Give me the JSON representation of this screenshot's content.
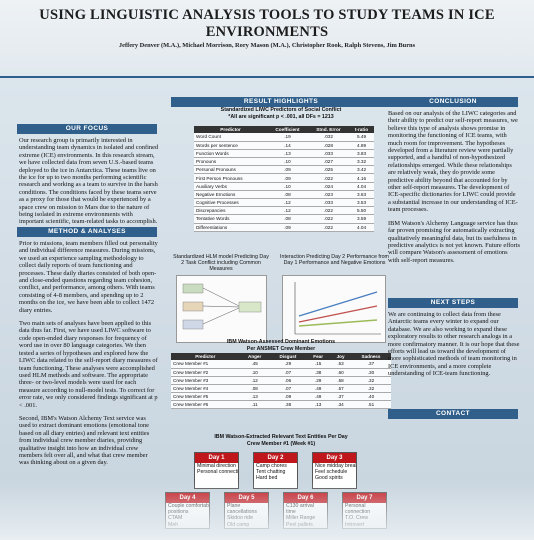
{
  "title": "USING LINGUISTIC ANALYSIS TOOLS TO STUDY TEAMS IN ICE ENVIRONMENTS",
  "authors": "Jeffery Denver (M.A.), Michael Morrison, Rory Mason (M.A.), Christopher Rook, Ralph Stevens, Jim Burns",
  "focus": {
    "header": "OUR FOCUS",
    "text": "Our research group is primarily interested in understanding team dynamics in isolated and confined extreme (ICE) environments. In this research stream, we have collected data from seven U.S.-based teams deployed to the ice in Antarctica. These teams live on the ice for up to two months performing scientific research and working as a team to survive in the harsh conditions. The conditions faced by these teams serve as a proxy for those that would be experienced by a space crew on mission to Mars due to the nature of being isolated in extreme environments with important scientific, team-related tasks to accomplish."
  },
  "methods": {
    "header": "METHOD & ANALYSES",
    "paragraphs": [
      "Prior to missions, team members filled out personality and individual difference measures. During missions, we used an experience sampling methodology to collect daily reports of team functioning and processes. These daily diaries consisted of both open- and close-ended questions regarding team cohesion, conflict, and performance, among others. With teams consisting of 4-8 members, and spending up to 2 months on the ice, we have been able to collect 1472 diary entries.",
      "Two main sets of analyses have been applied to this data thus far. First, we have used LIWC software to code open-ended diary responses for frequency of word use in over 80 language categories. We then tested a series of hypotheses and explored how the LIWC data related to the self-report diary measures of team functioning. These analyses were accomplished used HLM methods and software. The appropriate three- or two-level models were used for each measure according to null-model tests. To correct for error rate, we only considered findings significant at p < .001.",
      "Second, IBM's Watson Alchemy Text service was used to extract dominant emotions (emotional tone based on all diary entries) and relevant text entities from individual crew member diaries, providing qualitative insight into how an individual crew members felt over all, and what that crew member was thinking about on a given day."
    ]
  },
  "results": {
    "header": "RESULT HIGHLIGHTS",
    "table1": {
      "caption1": "Standardized LIWC Predictors of Social Conflict",
      "caption2": "*All are significant p < .001, all DFs = 1213",
      "columns": [
        "Predictor",
        "Coefficient",
        "Stnd. Error",
        "t-ratio"
      ],
      "rows": [
        [
          "Word Count",
          ".19",
          ".032",
          "5.49"
        ],
        [
          "Words per sentence",
          ".14",
          ".028",
          "4.89"
        ],
        [
          "Function Words",
          ".13",
          ".033",
          "3.83"
        ],
        [
          "Pronouns",
          ".10",
          ".027",
          "3.32"
        ],
        [
          "Personal Pronouns",
          ".09",
          ".025",
          "3.42"
        ],
        [
          "First Person Pronouns",
          ".09",
          ".022",
          "4.16"
        ],
        [
          "Auxiliary Verbs",
          ".10",
          ".024",
          "4.04"
        ],
        [
          "Negative Emotions",
          ".08",
          ".023",
          "3.63"
        ],
        [
          "Cognitive Processes",
          ".12",
          ".033",
          "3.53"
        ],
        [
          "Discrepancies",
          ".12",
          ".022",
          "5.50"
        ],
        [
          "Tentative Words",
          ".08",
          ".022",
          "3.59"
        ],
        [
          "Differentiations",
          ".09",
          ".022",
          "4.04"
        ]
      ]
    },
    "chart1": {
      "caption": "Standardized HLM model Predicting Day 2 Task Conflict including Common Measures"
    },
    "chart2": {
      "caption": "Interaction Predicting Day 2 Performance from Day 1 Performance and Negative Emotions"
    },
    "table2": {
      "caption1": "IBM Watson-Assessed Dominant Emotions",
      "caption2": "Per ANSMET Crew Member",
      "columns": [
        "Predictor",
        "Anger",
        "Disgust",
        "Fear",
        "Joy",
        "Sadness"
      ],
      "rows": [
        [
          "Crew Member #1",
          ".45",
          ".29",
          ".15",
          ".53",
          ".37"
        ],
        [
          "Crew Member #2",
          ".10",
          ".07",
          ".38",
          ".60",
          ".30"
        ],
        [
          "Crew Member #3",
          ".12",
          ".06",
          ".29",
          ".58",
          ".32"
        ],
        [
          "Crew Member #4",
          ".08",
          ".07",
          ".49",
          ".57",
          ".32"
        ],
        [
          "Crew Member #5",
          ".13",
          ".09",
          ".49",
          ".37",
          ".40"
        ],
        [
          "Crew Member #6",
          ".11",
          ".38",
          ".13",
          ".34",
          ".51"
        ]
      ]
    },
    "entities": {
      "caption1": "IBM Watson-Extracted Relevant Text Entities Per Day",
      "caption2": "Crew Member #1 (Week #1)",
      "days": [
        {
          "label": "Day 1",
          "items": [
            "Minimal direction",
            "Personal connection"
          ]
        },
        {
          "label": "Day 2",
          "items": [
            "Camp chores",
            "Tent chatting",
            "Hard bed"
          ]
        },
        {
          "label": "Day 3",
          "items": [
            "Nice midday break",
            "Feel schedule",
            "Good spirits"
          ]
        },
        {
          "label": "Day 4",
          "items": [
            "Couple comfortable",
            "positions",
            "CTAM",
            "Meh"
          ]
        },
        {
          "label": "Day 5",
          "items": [
            "Plane",
            "cancellations",
            "Skidoo ride",
            "Old camp"
          ]
        },
        {
          "label": "Day 6",
          "items": [
            "C130 arrival",
            "time",
            "Miller Range",
            "Peel pallets"
          ]
        },
        {
          "label": "Day 7",
          "items": [
            "Personal",
            "connection",
            "T.O. Crew",
            "Introvert"
          ]
        }
      ]
    }
  },
  "conclusion": {
    "header": "CONCLUSION",
    "paragraphs": [
      "Based on our analysis of the LIWC categories and their ability to predict our self-report measures, we believe this type of analysis shows promise in monitoring the functioning of ICE teams, with much room for improvement. The hypotheses developed from a literature review were partially supported, and a handful of non-hypothesized relationships emerged. While these relationships are relatively weak, they do provide some predictive ability beyond that accounted for by other self-report measures. The development of ICE-specific dictionaries for LIWC could provide a substantial increase in our understanding of ICE-team processes.",
      "IBM Watson's Alchemy Language service has thus far proven promising for automatically extracting qualitatively meaningful data, but its usefulness in predictive analytics is not yet known. Future efforts will compare Watson's assessment of emotions with self-report measures."
    ]
  },
  "next_steps": {
    "header": "NEXT STEPS",
    "text": "We are continuing to collect data from these Antarctic teams every winter to expand our database. We are also working to expand these exploratory results to other research analogs in a more confirmatory manner. It is our hope that these efforts will lead us toward the development of more sophisticated methods of team monitoring in ICE environments, and a more complete understanding of ICE-team functioning."
  },
  "contact": {
    "header": "CONTACT"
  },
  "colors": {
    "header_bg": "#2f5f8a",
    "day_header": "#c0171d"
  }
}
